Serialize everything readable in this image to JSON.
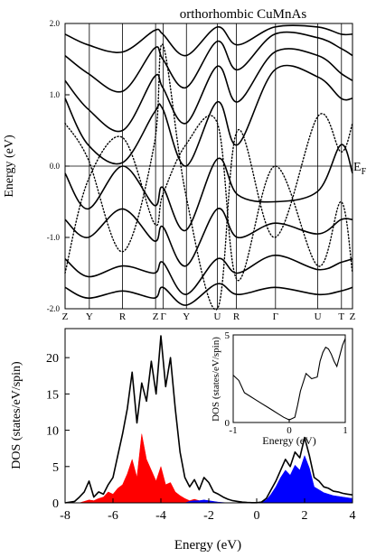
{
  "chart_data": [
    {
      "type": "line",
      "title": "orthorhombic CuMnAs",
      "ylabel": "Energy (eV)",
      "ylim": [
        -2.0,
        2.0
      ],
      "yticks": [
        "2.0",
        "1.0",
        "0.0",
        "-1.0",
        "-2.0"
      ],
      "yticks_vals": [
        2.0,
        1.0,
        0.0,
        -1.0,
        -2.0
      ],
      "kpath": [
        "Z",
        "Y",
        "R",
        "Z",
        "Γ",
        "Y",
        "U",
        "R",
        "Γ",
        "U",
        "T",
        "Z"
      ],
      "kpath_pos": [
        0,
        0.0844,
        0.2,
        0.3149,
        0.3416,
        0.4222,
        0.5298,
        0.5961,
        0.7321,
        0.8791,
        0.9616,
        1.0
      ],
      "fermi_label": "E",
      "fermi_sub": "F",
      "fermi_level": 0.0,
      "series": [
        {
          "style": "solid",
          "x": [
            0,
            0.08,
            0.2,
            0.31,
            0.34,
            0.42,
            0.53,
            0.6,
            0.73,
            0.88,
            0.96,
            1.0
          ],
          "values": [
            0.95,
            0.3,
            0.05,
            0.75,
            0.8,
            0.0,
            0.9,
            0.3,
            1.35,
            1.25,
            0.95,
            0.95
          ]
        },
        {
          "style": "solid",
          "x": [
            0,
            0.08,
            0.2,
            0.31,
            0.34,
            0.42,
            0.53,
            0.6,
            0.73,
            0.88,
            0.96,
            1.0
          ],
          "values": [
            1.2,
            0.8,
            0.5,
            1.25,
            1.1,
            0.6,
            1.4,
            0.9,
            1.6,
            1.55,
            1.3,
            1.2
          ]
        },
        {
          "style": "solid",
          "x": [
            0,
            0.08,
            0.2,
            0.31,
            0.34,
            0.42,
            0.53,
            0.6,
            0.73,
            0.88,
            0.96,
            1.0
          ],
          "values": [
            1.55,
            1.3,
            1.05,
            1.65,
            1.5,
            1.1,
            1.75,
            1.35,
            1.85,
            1.8,
            1.65,
            1.55
          ]
        },
        {
          "style": "solid",
          "x": [
            0,
            0.08,
            0.2,
            0.31,
            0.34,
            0.42,
            0.53,
            0.6,
            0.73,
            0.88,
            0.96,
            1.0
          ],
          "values": [
            1.85,
            1.7,
            1.6,
            1.9,
            1.85,
            1.55,
            1.95,
            1.7,
            1.95,
            1.95,
            1.85,
            1.85
          ]
        },
        {
          "style": "solid",
          "x": [
            0,
            0.08,
            0.2,
            0.31,
            0.34,
            0.42,
            0.53,
            0.6,
            0.73,
            0.88,
            0.96,
            1.0
          ],
          "values": [
            -0.1,
            -0.6,
            0.0,
            -0.55,
            -0.3,
            -0.9,
            0.1,
            -0.4,
            -0.5,
            -0.35,
            0.3,
            -0.1
          ]
        },
        {
          "style": "solid",
          "x": [
            0,
            0.08,
            0.2,
            0.31,
            0.34,
            0.42,
            0.53,
            0.6,
            0.73,
            0.88,
            0.96,
            1.0
          ],
          "values": [
            -0.75,
            -1.0,
            -0.6,
            -1.05,
            -0.85,
            -1.4,
            -0.6,
            -1.0,
            -0.8,
            -0.95,
            -0.75,
            -0.75
          ]
        },
        {
          "style": "solid",
          "x": [
            0,
            0.08,
            0.2,
            0.31,
            0.34,
            0.42,
            0.53,
            0.6,
            0.73,
            0.88,
            0.96,
            1.0
          ],
          "values": [
            -1.3,
            -1.55,
            -1.4,
            -1.5,
            -1.35,
            -1.8,
            -1.3,
            -1.5,
            -1.25,
            -1.45,
            -1.35,
            -1.3
          ]
        },
        {
          "style": "solid",
          "x": [
            0,
            0.08,
            0.2,
            0.31,
            0.34,
            0.42,
            0.53,
            0.6,
            0.73,
            0.88,
            0.96,
            1.0
          ],
          "values": [
            -1.7,
            -1.85,
            -1.75,
            -1.85,
            -1.7,
            -1.95,
            -1.65,
            -1.8,
            -1.7,
            -1.8,
            -1.75,
            -1.7
          ]
        },
        {
          "style": "dotted",
          "x": [
            0,
            0.08,
            0.2,
            0.31,
            0.34,
            0.42,
            0.53,
            0.6,
            0.73,
            0.88,
            0.96,
            1.0
          ],
          "values": [
            0.6,
            0.1,
            -1.2,
            0.3,
            1.7,
            -0.4,
            -2.0,
            0.5,
            -1.0,
            0.7,
            0.2,
            0.6
          ]
        },
        {
          "style": "dotted",
          "x": [
            0,
            0.08,
            0.2,
            0.31,
            0.34,
            0.42,
            0.53,
            0.6,
            0.73,
            0.88,
            0.96,
            1.0
          ],
          "values": [
            -1.5,
            -0.2,
            0.4,
            -0.8,
            -0.4,
            0.3,
            0.6,
            -1.6,
            0.0,
            -1.4,
            -0.5,
            -1.5
          ]
        }
      ]
    },
    {
      "type": "area",
      "xlabel": "Energy (eV)",
      "ylabel": "DOS (states/eV/spin)",
      "xlim": [
        -8,
        4
      ],
      "ylim": [
        0,
        24
      ],
      "xticks": [
        "-8",
        "-6",
        "-4",
        "-2",
        "0",
        "2",
        "4"
      ],
      "xticks_vals": [
        -8,
        -6,
        -4,
        -2,
        0,
        2,
        4
      ],
      "yticks": [
        "0",
        "5",
        "10",
        "15",
        "20"
      ],
      "yticks_vals": [
        0,
        5,
        10,
        15,
        20
      ],
      "x": [
        -8,
        -7.6,
        -7.4,
        -7.2,
        -7.0,
        -6.8,
        -6.6,
        -6.4,
        -6.2,
        -6.0,
        -5.8,
        -5.6,
        -5.4,
        -5.2,
        -5.0,
        -4.8,
        -4.6,
        -4.4,
        -4.2,
        -4.0,
        -3.8,
        -3.6,
        -3.4,
        -3.2,
        -3.0,
        -2.8,
        -2.6,
        -2.4,
        -2.2,
        -2.0,
        -1.8,
        -1.6,
        -1.4,
        -1.2,
        -1.0,
        -0.8,
        -0.6,
        -0.4,
        -0.2,
        0.0,
        0.2,
        0.4,
        0.6,
        0.8,
        1.0,
        1.2,
        1.4,
        1.6,
        1.8,
        2.0,
        2.2,
        2.4,
        2.6,
        2.8,
        3.0,
        3.2,
        3.4,
        3.6,
        3.8,
        4.0
      ],
      "series": [
        {
          "color": "#000000",
          "style": "line",
          "values": [
            0,
            0.2,
            0.8,
            1.5,
            3.0,
            0.8,
            1.5,
            1.2,
            2.5,
            3.5,
            6.5,
            9.5,
            13.0,
            18.0,
            11.0,
            16.5,
            14.0,
            19.5,
            15.0,
            23.0,
            16.0,
            20.0,
            13.0,
            7.0,
            3.5,
            2.2,
            3.2,
            1.8,
            3.5,
            2.8,
            1.5,
            1.2,
            0.8,
            0.5,
            0.3,
            0.2,
            0.1,
            0.05,
            0.02,
            0.02,
            0.1,
            0.6,
            1.8,
            3.0,
            4.5,
            6.0,
            5.0,
            7.0,
            6.2,
            9.0,
            6.5,
            3.5,
            3.0,
            2.2,
            2.0,
            1.6,
            1.5,
            1.3,
            1.2,
            1.1
          ]
        },
        {
          "color": "#ff0000",
          "style": "fill",
          "values": [
            0,
            0,
            0,
            0.2,
            0.4,
            0.3,
            0.6,
            0.8,
            1.5,
            1.2,
            2.0,
            2.5,
            4.0,
            6.0,
            3.5,
            9.5,
            6.0,
            4.5,
            3.0,
            5.0,
            2.5,
            2.8,
            1.5,
            1.0,
            0.6,
            0.3,
            0.5,
            0.3,
            0.2,
            0.2,
            0.1,
            0.05,
            0,
            0,
            0,
            0,
            0,
            0,
            0,
            0,
            0,
            0,
            0,
            0,
            0,
            0,
            0,
            0,
            0,
            0,
            0,
            0,
            0,
            0,
            0,
            0,
            0,
            0,
            0,
            0
          ]
        },
        {
          "color": "#0000ff",
          "style": "fill",
          "values": [
            0,
            0,
            0,
            0,
            0,
            0,
            0,
            0,
            0,
            0,
            0,
            0,
            0,
            0,
            0,
            0,
            0,
            0,
            0,
            0,
            0,
            0,
            0,
            0,
            0,
            0.2,
            0.3,
            0.3,
            0.4,
            0.3,
            0.2,
            0.1,
            0.05,
            0,
            0,
            0,
            0,
            0,
            0,
            0,
            0.05,
            0.4,
            1.2,
            2.2,
            3.5,
            4.5,
            3.8,
            5.2,
            4.5,
            6.5,
            4.8,
            2.2,
            1.8,
            1.4,
            1.2,
            1.0,
            0.9,
            0.8,
            0.7,
            0.6
          ]
        }
      ],
      "inset": {
        "xlabel": "Energy (eV)",
        "ylabel": "DOS (states/eV/spin)",
        "xlim": [
          -1,
          1
        ],
        "ylim": [
          0,
          5
        ],
        "xticks": [
          "-1",
          "0",
          "1"
        ],
        "xticks_vals": [
          -1,
          0,
          1
        ],
        "yticks": [
          "0",
          "5"
        ],
        "yticks_vals": [
          0,
          5
        ],
        "x": [
          -1.0,
          -0.9,
          -0.8,
          -0.7,
          -0.6,
          -0.5,
          -0.4,
          -0.3,
          -0.2,
          -0.1,
          0.0,
          0.1,
          0.15,
          0.2,
          0.3,
          0.4,
          0.5,
          0.55,
          0.6,
          0.65,
          0.7,
          0.75,
          0.8,
          0.85,
          0.9,
          0.95,
          1.0
        ],
        "values": [
          2.7,
          2.4,
          1.7,
          1.5,
          1.3,
          1.1,
          0.9,
          0.7,
          0.5,
          0.3,
          0.15,
          0.3,
          1.0,
          1.8,
          2.8,
          2.5,
          2.6,
          3.5,
          4.0,
          4.3,
          4.2,
          3.9,
          3.5,
          3.2,
          3.8,
          4.4,
          4.8
        ]
      }
    }
  ]
}
